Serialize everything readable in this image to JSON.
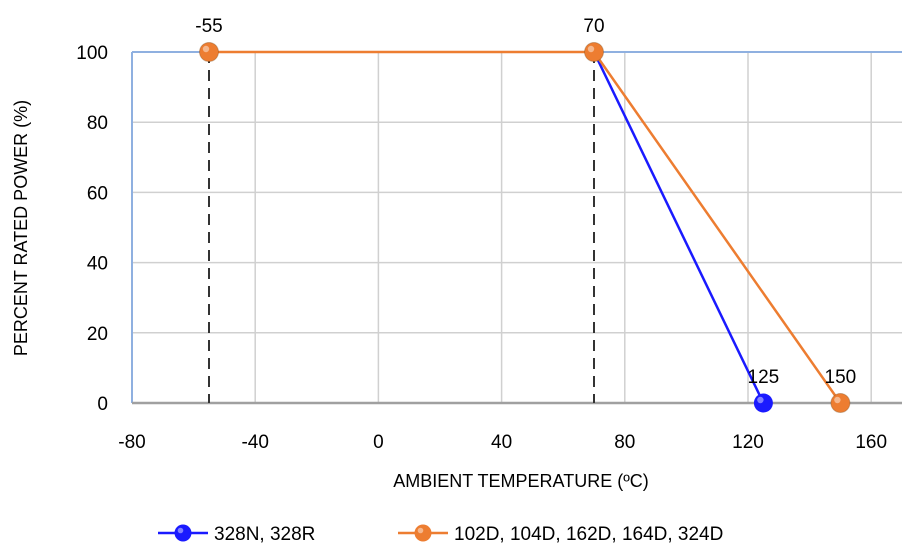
{
  "chart_data": {
    "type": "line",
    "xlabel": "AMBIENT TEMPERATURE (ºC)",
    "ylabel": "PERCENT RATED POWER (%)",
    "xlim": [
      -80,
      170
    ],
    "ylim": [
      0,
      100
    ],
    "xticks": [
      -80,
      -40,
      0,
      40,
      80,
      120,
      160
    ],
    "yticks": [
      0,
      20,
      40,
      60,
      80,
      100
    ],
    "grid": true,
    "legend_position": "bottom",
    "series": [
      {
        "name": "328N, 328R",
        "color": "#1a1aff",
        "points": [
          [
            70,
            100
          ],
          [
            125,
            0
          ]
        ],
        "marked_points": [
          [
            125,
            0
          ]
        ]
      },
      {
        "name": "102D, 104D, 162D, 164D, 324D",
        "color": "#ed7d31",
        "points": [
          [
            -55,
            100
          ],
          [
            70,
            100
          ],
          [
            150,
            0
          ]
        ],
        "marked_points": [
          [
            -55,
            100
          ],
          [
            70,
            100
          ],
          [
            150,
            0
          ]
        ]
      }
    ],
    "reference_lines": [
      -55,
      70
    ],
    "annotations": [
      {
        "text": "-55",
        "x": -55,
        "y": 100
      },
      {
        "text": "70",
        "x": 70,
        "y": 100
      },
      {
        "text": "125",
        "x": 125,
        "y": 0
      },
      {
        "text": "150",
        "x": 150,
        "y": 0
      }
    ]
  }
}
